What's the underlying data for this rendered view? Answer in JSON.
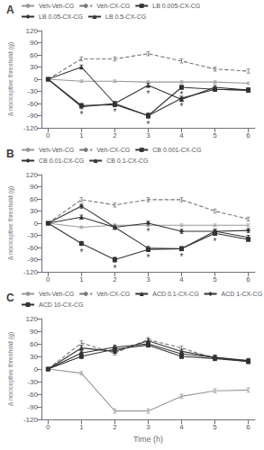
{
  "chart_data": [
    {
      "type": "line",
      "title": "A",
      "y_label": "Δ nociceptive threshold (g)",
      "x": [
        0,
        1,
        2,
        3,
        4,
        5,
        6
      ],
      "series": [
        {
          "name": "Veh-Veh-CG",
          "color": "#999999",
          "line_style": "solid",
          "values": [
            0,
            -5,
            -5,
            -7,
            -7,
            -7,
            -10
          ],
          "yerr": [
            2,
            3,
            3,
            3,
            3,
            3,
            3
          ]
        },
        {
          "name": "Veh-CX-CG",
          "color": "#777777",
          "line_style": "dashed",
          "values": [
            0,
            50,
            50,
            63,
            45,
            25,
            20
          ],
          "yerr": [
            2,
            5,
            5,
            5,
            5,
            5,
            5
          ]
        },
        {
          "name": "LB 0.005-CX-CG",
          "color": "#333333",
          "line_style": "solid",
          "marker": "square",
          "values": [
            0,
            -65,
            -63,
            -90,
            -20,
            -25,
            -27
          ],
          "yerr": [
            2,
            5,
            5,
            6,
            5,
            5,
            5
          ]
        },
        {
          "name": "LB 0.05-CX-CG",
          "color": "#333333",
          "line_style": "solid",
          "marker": "diamond",
          "values": [
            0,
            -68,
            -60,
            -90,
            -47,
            -25,
            -27
          ],
          "yerr": [
            2,
            5,
            5,
            6,
            5,
            5,
            5
          ]
        },
        {
          "name": "LB 0.5-CX-CG",
          "color": "#333333",
          "line_style": "solid",
          "marker": "triangle",
          "values": [
            0,
            30,
            -60,
            -15,
            -50,
            -20,
            -27
          ],
          "yerr": [
            2,
            5,
            5,
            5,
            5,
            5,
            5
          ]
        }
      ],
      "annotations": [
        {
          "text": "*",
          "x": 1,
          "y": -76
        },
        {
          "text": "*",
          "x": 2,
          "y": -71
        },
        {
          "text": "*",
          "x": 3,
          "y": -100
        },
        {
          "text": "*",
          "x": 3,
          "y": -25
        },
        {
          "text": "*",
          "x": 4,
          "y": -57
        },
        {
          "text": "*",
          "x": 4,
          "y": -28
        }
      ],
      "xlim": [
        -0.2,
        6.2
      ],
      "xticks": [
        0,
        1,
        2,
        3,
        4,
        5,
        6
      ],
      "ylim": [
        -120,
        120
      ],
      "yticks": [
        -120,
        -90,
        -60,
        -30,
        0,
        30,
        60,
        90,
        120
      ],
      "legend": "top",
      "grid": false
    },
    {
      "type": "line",
      "title": "B",
      "y_label": "Δ nociceptive threshold (g)",
      "x": [
        0,
        1,
        2,
        3,
        4,
        5,
        6
      ],
      "series": [
        {
          "name": "Veh-Veh-CG",
          "color": "#999999",
          "line_style": "solid",
          "values": [
            0,
            -10,
            -5,
            -5,
            -5,
            -5,
            -5
          ],
          "yerr": [
            2,
            3,
            3,
            3,
            3,
            3,
            3
          ]
        },
        {
          "name": "Veh-CX-CG",
          "color": "#777777",
          "line_style": "dashed",
          "values": [
            0,
            58,
            45,
            58,
            58,
            30,
            10
          ],
          "yerr": [
            2,
            5,
            5,
            5,
            5,
            5,
            5
          ]
        },
        {
          "name": "CB 0.001-CX-CG",
          "color": "#333333",
          "line_style": "solid",
          "marker": "square",
          "values": [
            0,
            -50,
            -90,
            -65,
            -63,
            -25,
            -40
          ],
          "yerr": [
            2,
            5,
            6,
            5,
            5,
            5,
            5
          ]
        },
        {
          "name": "CB 0.01-CX-CG",
          "color": "#333333",
          "line_style": "solid",
          "marker": "diamond",
          "values": [
            0,
            42,
            -10,
            0,
            -20,
            -20,
            -18
          ],
          "yerr": [
            2,
            5,
            5,
            5,
            5,
            5,
            5
          ]
        },
        {
          "name": "CB 0.1-CX-CG",
          "color": "#333333",
          "line_style": "solid",
          "marker": "triangle",
          "values": [
            0,
            15,
            -10,
            -62,
            -63,
            -20,
            -35
          ],
          "yerr": [
            2,
            5,
            5,
            5,
            5,
            5,
            5
          ]
        }
      ],
      "annotations": [
        {
          "text": "*",
          "x": 1,
          "y": -60
        },
        {
          "text": "*",
          "x": 2,
          "y": -100
        },
        {
          "text": "*",
          "x": 3,
          "y": -75
        },
        {
          "text": "*",
          "x": 3,
          "y": -10
        },
        {
          "text": "*",
          "x": 4,
          "y": -73
        },
        {
          "text": "*",
          "x": 5,
          "y": -35
        }
      ],
      "xlim": [
        -0.2,
        6.2
      ],
      "xticks": [
        0,
        1,
        2,
        3,
        4,
        5,
        6
      ],
      "ylim": [
        -120,
        120
      ],
      "yticks": [
        -120,
        -90,
        -60,
        -30,
        0,
        30,
        60,
        90,
        120
      ],
      "legend": "top",
      "grid": false
    },
    {
      "type": "line",
      "title": "C",
      "y_label": "Δ nociceptive threshold (g)",
      "x_label": "Time (h)",
      "x": [
        0,
        1,
        2,
        3,
        4,
        5,
        6
      ],
      "series": [
        {
          "name": "Veh-Veh-CG",
          "color": "#999999",
          "line_style": "solid",
          "values": [
            0,
            -10,
            -100,
            -100,
            -65,
            -52,
            -50
          ],
          "yerr": [
            2,
            4,
            5,
            5,
            5,
            5,
            5
          ]
        },
        {
          "name": "Veh-CX-CG",
          "color": "#777777",
          "line_style": "dashed",
          "values": [
            0,
            62,
            38,
            70,
            50,
            25,
            20
          ],
          "yerr": [
            2,
            5,
            5,
            5,
            5,
            5,
            5
          ]
        },
        {
          "name": "ACD 0.1-CX-CG",
          "color": "#333333",
          "line_style": "solid",
          "marker": "triangle",
          "values": [
            0,
            50,
            42,
            67,
            42,
            28,
            20
          ],
          "yerr": [
            2,
            5,
            5,
            5,
            5,
            5,
            5
          ]
        },
        {
          "name": "ACD 1-CX-CG",
          "color": "#333333",
          "line_style": "solid",
          "marker": "diamond",
          "values": [
            0,
            38,
            52,
            60,
            36,
            28,
            18
          ],
          "yerr": [
            2,
            5,
            5,
            5,
            5,
            5,
            5
          ]
        },
        {
          "name": "ACD 10-CX-CG",
          "color": "#333333",
          "line_style": "solid",
          "marker": "square",
          "values": [
            0,
            30,
            47,
            57,
            30,
            25,
            18
          ],
          "yerr": [
            2,
            5,
            5,
            5,
            5,
            5,
            5
          ]
        }
      ],
      "xlim": [
        -0.2,
        6.2
      ],
      "xticks": [
        0,
        1,
        2,
        3,
        4,
        5,
        6
      ],
      "ylim": [
        -120,
        120
      ],
      "yticks": [
        -120,
        -90,
        -60,
        -30,
        0,
        30,
        60,
        90,
        120
      ],
      "legend": "top",
      "grid": false
    }
  ]
}
